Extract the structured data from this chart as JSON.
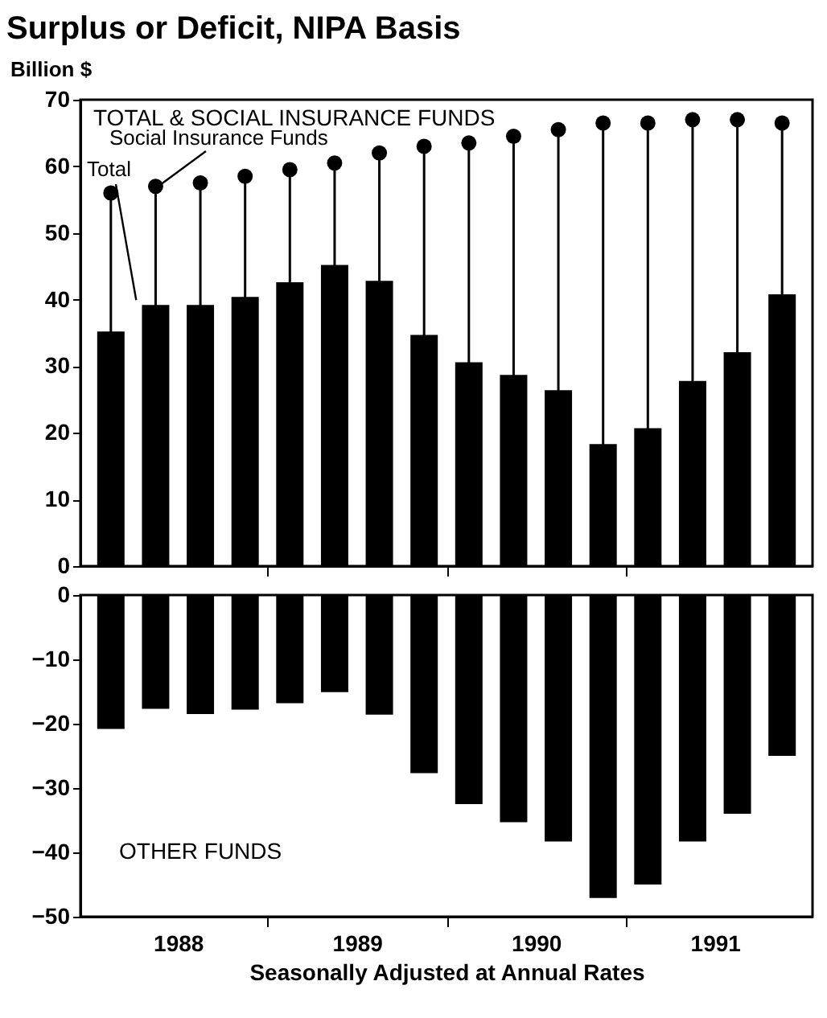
{
  "chart_data": [
    {
      "type": "bar",
      "title": "Surplus or Deficit, NIPA Basis",
      "ylabel": "Billion $",
      "annotations": [
        "TOTAL & SOCIAL INSURANCE FUNDS"
      ],
      "x": [
        1988.125,
        1988.375,
        1988.625,
        1988.875,
        1989.125,
        1989.375,
        1989.625,
        1989.875,
        1990.125,
        1990.375,
        1990.625,
        1990.875,
        1991.125,
        1991.375,
        1991.625,
        1991.875
      ],
      "xlim": [
        1988,
        1992
      ],
      "xticks": [
        {
          "value": 1989,
          "label": null
        },
        {
          "value": 1990,
          "label": null
        },
        {
          "value": 1991,
          "label": null
        }
      ],
      "ylim": [
        0,
        70
      ],
      "yticks": [
        0,
        10,
        20,
        30,
        40,
        50,
        60,
        70
      ],
      "tick_labels": "y",
      "marker": "circle",
      "series": [
        {
          "name": "Total",
          "type": "bar",
          "color": "#000000",
          "values": [
            35.2,
            39.2,
            39.2,
            40.4,
            42.6,
            45.2,
            42.8,
            34.7,
            30.6,
            28.7,
            26.4,
            18.3,
            20.7,
            27.8,
            32.1,
            40.8
          ]
        },
        {
          "name": "Social Insurance Funds",
          "type": "lollipop",
          "color": "#000000",
          "values": [
            56,
            57,
            57.5,
            58.5,
            59.5,
            60.5,
            62,
            63,
            63.5,
            64.5,
            65.5,
            66.5,
            66.5,
            67,
            67,
            66.5
          ]
        }
      ]
    },
    {
      "type": "bar",
      "annotations": [
        "OTHER FUNDS"
      ],
      "xlabel": "Seasonally Adjusted at Annual Rates",
      "x": [
        1988.125,
        1988.375,
        1988.625,
        1988.875,
        1989.125,
        1989.375,
        1989.625,
        1989.875,
        1990.125,
        1990.375,
        1990.625,
        1990.875,
        1991.125,
        1991.375,
        1991.625,
        1991.875
      ],
      "xlim": [
        1988,
        1992
      ],
      "xticks": [
        {
          "value": 1988.5,
          "label": "1988"
        },
        {
          "value": 1989,
          "label": null
        },
        {
          "value": 1989.5,
          "label": "1989"
        },
        {
          "value": 1990,
          "label": null
        },
        {
          "value": 1990.5,
          "label": "1990"
        },
        {
          "value": 1991,
          "label": null
        },
        {
          "value": 1991.5,
          "label": "1991"
        }
      ],
      "ylim": [
        -50,
        0
      ],
      "yticks": [
        -50,
        -40,
        -30,
        -20,
        -10,
        0
      ],
      "color": "#000000",
      "values": [
        -20.8,
        -17.7,
        -18.5,
        -17.8,
        -16.8,
        -15.1,
        -18.6,
        -27.7,
        -32.5,
        -35.3,
        -38.3,
        -47.1,
        -45,
        -38.3,
        -34,
        -25
      ]
    }
  ]
}
